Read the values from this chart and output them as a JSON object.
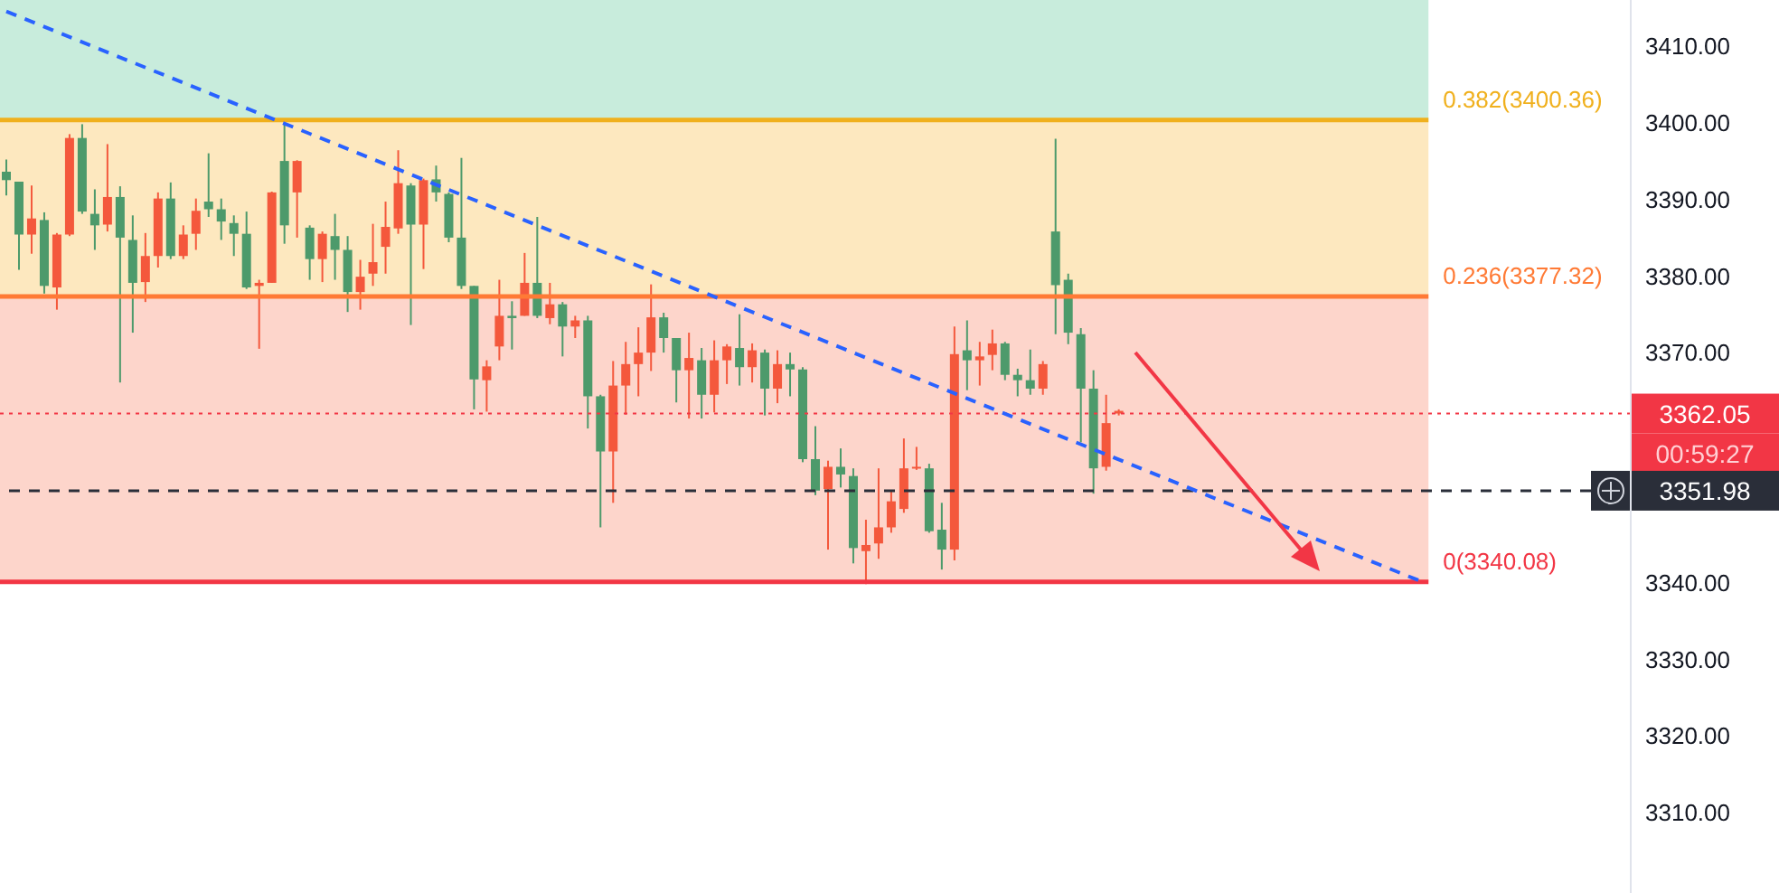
{
  "chart_data": {
    "type": "candlestick",
    "tick_labels": "y",
    "categories": [
      null,
      null,
      null,
      null,
      null,
      null,
      null,
      null,
      null,
      null,
      null,
      null,
      null,
      null,
      null,
      null,
      null,
      null,
      null,
      null,
      null,
      null,
      null,
      null,
      null,
      null,
      null,
      null,
      null,
      null,
      null,
      null,
      null,
      null,
      null,
      null,
      null,
      null,
      null,
      null,
      null,
      null,
      null,
      null,
      null,
      null,
      null,
      null,
      null,
      null,
      null,
      null,
      null,
      null,
      null,
      null,
      null,
      null,
      null,
      null,
      null,
      null,
      null,
      null,
      null,
      null,
      null,
      null,
      null,
      null,
      null,
      null,
      null,
      null,
      null,
      null,
      null,
      null,
      null,
      null,
      null,
      null,
      null,
      null,
      null,
      null,
      null,
      null,
      null,
      null,
      null,
      null,
      null,
      null,
      null,
      null,
      null,
      null,
      null,
      null,
      null,
      null,
      null,
      null,
      null,
      null,
      null,
      null,
      null,
      null,
      null,
      null,
      null,
      null,
      null,
      null,
      null,
      null,
      null,
      null,
      null,
      null,
      null,
      null,
      null,
      null,
      null,
      null,
      null
    ],
    "ohlc": [
      [
        3392.5,
        3395.2,
        3390.5,
        3393.6
      ],
      [
        3385.4,
        3392.3,
        3380.8,
        3392.3
      ],
      [
        3387.5,
        3391.8,
        3382.9,
        3385.4
      ],
      [
        3378.7,
        3388.3,
        3377.7,
        3387.3
      ],
      [
        3385.4,
        3385.6,
        3375.6,
        3378.5
      ],
      [
        3398.0,
        3398.5,
        3385.2,
        3385.4
      ],
      [
        3388.4,
        3399.8,
        3388.1,
        3398.0
      ],
      [
        3386.6,
        3391.3,
        3383.4,
        3388.1
      ],
      [
        3390.3,
        3397.2,
        3385.8,
        3386.7
      ],
      [
        3385.0,
        3391.7,
        3366.1,
        3390.3
      ],
      [
        3379.1,
        3387.9,
        3372.6,
        3384.7
      ],
      [
        3382.6,
        3385.6,
        3376.6,
        3379.2
      ],
      [
        3390.1,
        3390.9,
        3381.1,
        3382.6
      ],
      [
        3382.6,
        3392.2,
        3382.2,
        3390.1
      ],
      [
        3385.4,
        3386.6,
        3382.2,
        3382.6
      ],
      [
        3388.5,
        3390.1,
        3383.4,
        3385.5
      ],
      [
        3388.7,
        3396.0,
        3387.7,
        3389.7
      ],
      [
        3387.1,
        3390.1,
        3384.7,
        3388.7
      ],
      [
        3385.5,
        3387.9,
        3382.6,
        3386.9
      ],
      [
        3378.5,
        3388.4,
        3378.3,
        3385.5
      ],
      [
        3379.1,
        3379.5,
        3370.5,
        3378.7
      ],
      [
        3390.9,
        3391.0,
        3379.1,
        3379.1
      ],
      [
        3386.6,
        3399.8,
        3384.2,
        3395.0
      ],
      [
        3395.0,
        3395.1,
        3385.0,
        3390.9
      ],
      [
        3382.2,
        3386.6,
        3379.5,
        3386.3
      ],
      [
        3385.5,
        3385.8,
        3379.2,
        3382.2
      ],
      [
        3383.4,
        3388.1,
        3379.5,
        3385.2
      ],
      [
        3377.9,
        3385.2,
        3375.3,
        3383.4
      ],
      [
        3379.9,
        3382.1,
        3375.6,
        3377.9
      ],
      [
        3381.8,
        3386.8,
        3378.7,
        3380.3
      ],
      [
        3386.4,
        3389.7,
        3380.3,
        3383.8
      ],
      [
        3392.1,
        3396.4,
        3385.5,
        3386.2
      ],
      [
        3386.7,
        3392.1,
        3373.6,
        3391.8
      ],
      [
        3392.5,
        3392.7,
        3380.9,
        3386.7
      ],
      [
        3390.9,
        3394.4,
        3389.7,
        3392.6
      ],
      [
        3385.0,
        3390.9,
        3384.4,
        3390.7
      ],
      [
        3378.7,
        3395.4,
        3378.3,
        3385.0
      ],
      [
        3366.5,
        3378.7,
        3362.6,
        3378.7
      ],
      [
        3368.2,
        3369.0,
        3362.3,
        3366.4
      ],
      [
        3374.8,
        3379.5,
        3369.0,
        3370.8
      ],
      [
        3374.5,
        3376.7,
        3370.4,
        3374.8
      ],
      [
        3379.1,
        3383.0,
        3374.8,
        3374.8
      ],
      [
        3374.8,
        3387.7,
        3374.5,
        3379.1
      ],
      [
        3376.3,
        3379.1,
        3373.7,
        3374.5
      ],
      [
        3373.4,
        3376.6,
        3369.5,
        3376.3
      ],
      [
        3374.2,
        3374.8,
        3371.9,
        3373.4
      ],
      [
        3364.3,
        3374.8,
        3360.1,
        3374.2
      ],
      [
        3357.1,
        3364.5,
        3347.2,
        3364.3
      ],
      [
        3365.7,
        3368.9,
        3350.4,
        3357.1
      ],
      [
        3368.5,
        3371.4,
        3361.9,
        3365.7
      ],
      [
        3370.0,
        3373.3,
        3364.3,
        3368.5
      ],
      [
        3374.6,
        3378.9,
        3367.6,
        3370.0
      ],
      [
        3371.9,
        3375.2,
        3370.0,
        3374.6
      ],
      [
        3367.7,
        3371.9,
        3363.5,
        3371.9
      ],
      [
        3369.3,
        3372.6,
        3361.4,
        3367.7
      ],
      [
        3364.5,
        3370.6,
        3361.4,
        3369.0
      ],
      [
        3369.0,
        3371.6,
        3362.2,
        3364.5
      ],
      [
        3370.8,
        3371.1,
        3365.9,
        3369.0
      ],
      [
        3368.1,
        3375.0,
        3365.7,
        3370.6
      ],
      [
        3370.3,
        3371.2,
        3366.1,
        3368.1
      ],
      [
        3365.3,
        3370.4,
        3361.8,
        3370.0
      ],
      [
        3368.5,
        3370.3,
        3363.4,
        3365.3
      ],
      [
        3367.8,
        3370.0,
        3364.3,
        3368.5
      ],
      [
        3356.1,
        3368.1,
        3355.7,
        3367.8
      ],
      [
        3352.0,
        3360.4,
        3351.4,
        3356.1
      ],
      [
        3355.1,
        3355.9,
        3344.3,
        3352.2
      ],
      [
        3354.1,
        3357.5,
        3352.4,
        3355.1
      ],
      [
        3344.5,
        3354.9,
        3342.5,
        3353.9
      ],
      [
        3344.9,
        3348.2,
        3339.8,
        3344.1
      ],
      [
        3347.2,
        3354.9,
        3343.1,
        3345.1
      ],
      [
        3350.6,
        3352.0,
        3346.5,
        3347.2
      ],
      [
        3354.9,
        3358.8,
        3349.1,
        3349.6
      ],
      [
        3355.1,
        3357.7,
        3354.7,
        3354.9
      ],
      [
        3346.7,
        3355.5,
        3346.5,
        3354.9
      ],
      [
        3344.3,
        3350.4,
        3341.7,
        3346.9
      ],
      [
        3369.8,
        3373.4,
        3342.9,
        3344.3
      ],
      [
        3369.0,
        3374.2,
        3365.1,
        3370.3
      ],
      [
        3369.5,
        3371.4,
        3365.7,
        3369.0
      ],
      [
        3371.2,
        3373.0,
        3367.7,
        3369.7
      ],
      [
        3367.1,
        3371.4,
        3366.4,
        3371.2
      ],
      [
        3366.4,
        3367.9,
        3364.3,
        3367.1
      ],
      [
        3365.3,
        3370.4,
        3364.5,
        3366.4
      ],
      [
        3368.5,
        3368.9,
        3364.5,
        3365.3
      ],
      [
        3378.8,
        3397.9,
        3372.4,
        3385.8
      ],
      [
        3372.6,
        3380.3,
        3371.1,
        3379.5
      ],
      [
        3365.3,
        3373.2,
        3358.3,
        3372.4
      ],
      [
        3354.9,
        3367.7,
        3351.6,
        3365.3
      ],
      [
        3360.8,
        3364.5,
        3354.6,
        3355.1
      ],
      [
        3362.4,
        3362.6,
        3361.8,
        3362.05
      ],
      null,
      null,
      null,
      null,
      null,
      null,
      null,
      null,
      null,
      null,
      null,
      null,
      null,
      null,
      null,
      null,
      null,
      null,
      null,
      null,
      null,
      null,
      null,
      null,
      null,
      null,
      null,
      null,
      null,
      null,
      null,
      null,
      null,
      null,
      null,
      null,
      null,
      null,
      null,
      null
    ],
    "colors": [
      "#4d9a6b",
      "#4d9a6b",
      "#f4583c",
      "#4d9a6b",
      "#f4583c",
      "#f4583c",
      "#4d9a6b",
      "#4d9a6b",
      "#f4583c",
      "#4d9a6b",
      "#4d9a6b",
      "#f4583c",
      "#f4583c",
      "#4d9a6b",
      "#f4583c",
      "#f4583c",
      "#4d9a6b",
      "#4d9a6b",
      "#4d9a6b",
      "#4d9a6b",
      "#f4583c",
      "#f4583c",
      "#4d9a6b",
      "#f4583c",
      "#4d9a6b",
      "#f4583c",
      "#4d9a6b",
      "#4d9a6b",
      "#f4583c",
      "#f4583c",
      "#f4583c",
      "#f4583c",
      "#4d9a6b",
      "#f4583c",
      "#4d9a6b",
      "#4d9a6b",
      "#4d9a6b",
      "#4d9a6b",
      "#f4583c",
      "#f4583c",
      "#4d9a6b",
      "#f4583c",
      "#4d9a6b",
      "#f4583c",
      "#4d9a6b",
      "#f4583c",
      "#4d9a6b",
      "#4d9a6b",
      "#f4583c",
      "#f4583c",
      "#f4583c",
      "#f4583c",
      "#4d9a6b",
      "#4d9a6b",
      "#f4583c",
      "#4d9a6b",
      "#f4583c",
      "#f4583c",
      "#4d9a6b",
      "#f4583c",
      "#4d9a6b",
      "#f4583c",
      "#4d9a6b",
      "#4d9a6b",
      "#4d9a6b",
      "#f4583c",
      "#4d9a6b",
      "#4d9a6b",
      "#f4583c",
      "#f4583c",
      "#f4583c",
      "#f4583c",
      "#f4583c",
      "#4d9a6b",
      "#4d9a6b",
      "#f4583c",
      "#4d9a6b",
      "#f4583c",
      "#f4583c",
      "#4d9a6b",
      "#4d9a6b",
      "#4d9a6b",
      "#f4583c",
      "#4d9a6b",
      "#4d9a6b",
      "#4d9a6b",
      "#4d9a6b",
      "#f4583c",
      "#f4583c",
      null,
      null,
      null,
      null,
      null,
      null,
      null,
      null,
      null,
      null,
      null,
      null,
      null,
      null,
      null,
      null,
      null,
      null,
      null,
      null,
      null,
      null,
      null,
      null,
      null,
      null,
      null,
      null,
      null,
      null,
      null,
      null,
      null,
      null,
      null,
      null,
      null,
      null,
      null,
      null
    ],
    "series": [
      {
        "type": "line",
        "color": "#2962ff",
        "line_style": "dashed",
        "values": [
          3414.5,
          null,
          null,
          null,
          null,
          null,
          null,
          null,
          null,
          null,
          null,
          null,
          null,
          null,
          null,
          null,
          null,
          null,
          null,
          null,
          null,
          null,
          null,
          null,
          null,
          null,
          null,
          null,
          null,
          null,
          null,
          null,
          null,
          null,
          null,
          null,
          null,
          null,
          null,
          null,
          null,
          null,
          null,
          null,
          null,
          null,
          null,
          null,
          null,
          null,
          null,
          null,
          null,
          null,
          null,
          null,
          null,
          null,
          null,
          null,
          null,
          null,
          null,
          null,
          null,
          null,
          null,
          null,
          null,
          null,
          null,
          null,
          null,
          null,
          null,
          null,
          null,
          null,
          null,
          null,
          null,
          null,
          null,
          null,
          null,
          null,
          null,
          null,
          null,
          null,
          null,
          null,
          null,
          null,
          null,
          null,
          null,
          null,
          null,
          null,
          null,
          null,
          null,
          null,
          null,
          null,
          null,
          null,
          null,
          null,
          null,
          null,
          3340.1,
          null,
          null,
          null,
          null,
          null,
          null,
          null,
          null,
          null,
          null,
          null,
          null,
          null,
          null,
          null,
          null
        ]
      }
    ],
    "ylim": [
      3299.5,
      3416
    ],
    "yticks": [
      {
        "value": 3410,
        "label": "3410.00"
      },
      {
        "value": 3400,
        "label": "3400.00"
      },
      {
        "value": 3390,
        "label": "3390.00"
      },
      {
        "value": 3380,
        "label": "3380.00"
      },
      {
        "value": 3370,
        "label": "3370.00"
      },
      {
        "value": 3340,
        "label": "3340.00"
      },
      {
        "value": 3330,
        "label": "3330.00"
      },
      {
        "value": 3320,
        "label": "3320.00"
      },
      {
        "value": 3310,
        "label": "3310.00"
      }
    ],
    "bands": [
      {
        "axis": "y",
        "from": 3400.36,
        "to": 3416,
        "color": "#c8ecdc"
      },
      {
        "axis": "y",
        "from": 3377.32,
        "to": 3400.36,
        "color": "#fde8bf"
      },
      {
        "axis": "y",
        "from": 3340.08,
        "to": 3377.32,
        "color": "#fdd5cb"
      }
    ],
    "ref_lines": [
      {
        "axis": "y",
        "value": 3362.05,
        "label": "3362.05",
        "color": "#f23645",
        "line_style": "dotted"
      },
      {
        "axis": "y",
        "value": 3351.98,
        "label": "3351.98",
        "color": "#2a2e39",
        "line_style": "dashed"
      },
      {
        "axis": "y",
        "value": 3400.36,
        "label": "0.382(3400.36)",
        "color": "#f0b01d",
        "line_style": "solid"
      },
      {
        "axis": "y",
        "value": 3377.32,
        "label": "0.236(3377.32)",
        "color": "#ff7a35",
        "line_style": "solid"
      },
      {
        "axis": "y",
        "value": 3340.08,
        "label": "0(3340.08)",
        "color": "#f23645",
        "line_style": "solid"
      }
    ],
    "annotations": [
      "00:59:27"
    ]
  }
}
